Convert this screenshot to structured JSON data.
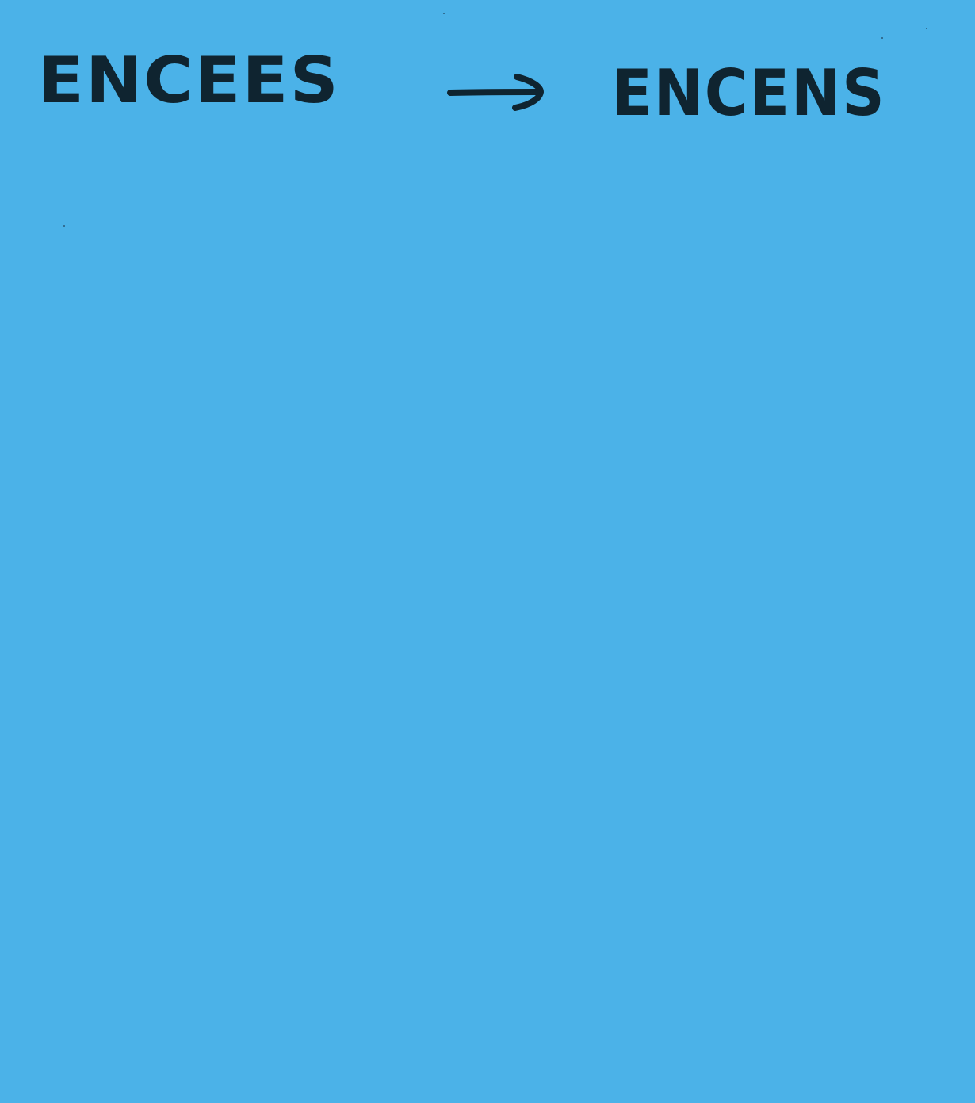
{
  "note": {
    "background_color": "#4bb2e8",
    "ink_color": "#0f2430",
    "from_word": "ENCEES",
    "to_word": "ENCENS",
    "arrow_icon": "right-arrow-icon"
  }
}
